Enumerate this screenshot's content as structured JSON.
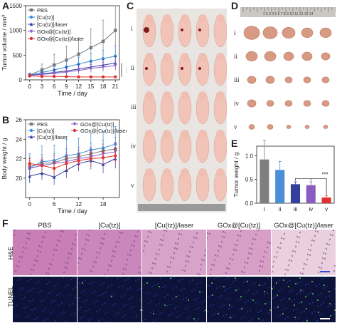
{
  "panels": {
    "A": "A",
    "B": "B",
    "C": "C",
    "D": "D",
    "E": "E",
    "F": "F"
  },
  "colors": {
    "pbs": "#7a7a7a",
    "cutz": "#3a8fd4",
    "cutz_laser": "#2f3e9e",
    "gox_cutz": "#8c5cc7",
    "gox_cutz_laser": "#e03030"
  },
  "chart_data": [
    {
      "id": "A",
      "type": "line",
      "xlabel": "Time / day",
      "ylabel": "Tumor volume / mm³",
      "x": [
        0,
        3,
        6,
        9,
        12,
        15,
        18,
        21
      ],
      "xlim": [
        -1,
        22
      ],
      "ylim": [
        0,
        1500
      ],
      "xticks": [
        "0",
        "3",
        "6",
        "9",
        "12",
        "15",
        "18",
        "21"
      ],
      "yticks": [
        "0",
        "500",
        "1000",
        "1500"
      ],
      "annotation": "***",
      "series": [
        {
          "name": "PBS",
          "color": "#7a7a7a",
          "marker": "square",
          "values": [
            100,
            200,
            300,
            400,
            520,
            650,
            780,
            1000
          ],
          "err": [
            40,
            120,
            220,
            280,
            330,
            380,
            430,
            560
          ]
        },
        {
          "name": "[Cu(tz)]",
          "color": "#3a8fd4",
          "marker": "circle",
          "values": [
            95,
            150,
            200,
            260,
            320,
            380,
            430,
            480
          ],
          "err": [
            30,
            80,
            100,
            120,
            140,
            150,
            170,
            200
          ]
        },
        {
          "name": "[Cu(tz)]/laser",
          "color": "#2f3e9e",
          "marker": "triangle",
          "values": [
            90,
            120,
            150,
            180,
            220,
            260,
            300,
            340
          ],
          "err": [
            20,
            40,
            60,
            80,
            90,
            100,
            110,
            130
          ]
        },
        {
          "name": "GOx@[Cu(tz)]",
          "color": "#8c5cc7",
          "marker": "triangle-down",
          "values": [
            90,
            110,
            130,
            160,
            190,
            230,
            260,
            290
          ],
          "err": [
            20,
            30,
            40,
            60,
            70,
            80,
            90,
            100
          ]
        },
        {
          "name": "GOx@[Cu(tz)]/laser",
          "color": "#e03030",
          "marker": "circle",
          "values": [
            80,
            70,
            70,
            65,
            60,
            60,
            60,
            60
          ],
          "err": [
            10,
            10,
            10,
            10,
            8,
            8,
            8,
            8
          ]
        }
      ]
    },
    {
      "id": "B",
      "type": "line",
      "xlabel": "Time / day",
      "ylabel": "Body weight / g",
      "x": [
        0,
        3,
        6,
        9,
        12,
        15,
        18,
        21
      ],
      "xlim": [
        -1,
        22
      ],
      "ylim": [
        18,
        26
      ],
      "xticks": [
        "0",
        "6",
        "12",
        "18"
      ],
      "yticks": [
        "20",
        "22",
        "24",
        "26"
      ],
      "series": [
        {
          "name": "PBS",
          "color": "#7a7a7a",
          "marker": "square",
          "values": [
            21.2,
            21.5,
            21.6,
            22.0,
            22.2,
            22.5,
            22.8,
            23.0
          ],
          "err": [
            0.8,
            0.9,
            0.9,
            1.0,
            1.0,
            1.1,
            1.1,
            1.2
          ]
        },
        {
          "name": "[Cu(tz)]",
          "color": "#3a8fd4",
          "marker": "circle",
          "values": [
            21.0,
            21.7,
            21.8,
            22.3,
            22.5,
            22.9,
            23.1,
            23.5
          ],
          "err": [
            1.5,
            1.6,
            1.6,
            1.7,
            1.6,
            1.7,
            1.7,
            1.8
          ]
        },
        {
          "name": "[Cu(tz)]/laser",
          "color": "#2f3e9e",
          "marker": "triangle",
          "values": [
            20.2,
            20.5,
            20.1,
            20.8,
            21.5,
            21.8,
            21.4,
            22.0
          ],
          "err": [
            0.7,
            0.7,
            0.8,
            0.8,
            0.8,
            0.9,
            0.9,
            1.0
          ]
        },
        {
          "name": "GOx@[Cu(tz)]",
          "color": "#8c5cc7",
          "marker": "triangle-down",
          "values": [
            21.0,
            21.3,
            21.5,
            21.7,
            22.0,
            22.2,
            22.5,
            22.7
          ],
          "err": [
            0.8,
            0.8,
            0.8,
            0.9,
            0.9,
            1.0,
            1.0,
            1.0
          ]
        },
        {
          "name": "GOx@[Cu(tz)]/laser",
          "color": "#e03030",
          "marker": "circle",
          "values": [
            21.5,
            21.3,
            21.0,
            21.5,
            21.8,
            22.0,
            22.1,
            22.3
          ],
          "err": [
            0.6,
            0.6,
            0.7,
            0.7,
            0.7,
            0.8,
            0.8,
            0.8
          ]
        }
      ]
    },
    {
      "id": "E",
      "type": "bar",
      "ylabel": "Tumor weight / g",
      "categories": [
        "i",
        "ii",
        "iii",
        "iv",
        "v"
      ],
      "values": [
        0.92,
        0.7,
        0.4,
        0.38,
        0.12
      ],
      "err": [
        0.4,
        0.18,
        0.05,
        0.07,
        0.04
      ],
      "colors": [
        "#7f7f7f",
        "#4a8ed3",
        "#35409c",
        "#8a5cc2",
        "#e03030"
      ],
      "ylim": [
        0,
        1.2
      ],
      "yticks": [
        "0.0",
        "0.5",
        "1.0"
      ],
      "annotation": "***"
    }
  ],
  "photos": {
    "C_rows": [
      "i",
      "ii",
      "iii",
      "iv",
      "v"
    ],
    "D_rows": [
      "i",
      "ii",
      "iii",
      "iv",
      "v"
    ],
    "D_ruler_text": "1 2 3 4 5 6 7 8 9 10 11 12 13 14"
  },
  "histology": {
    "columns": [
      "PBS",
      "[Cu(tz)]",
      "[Cu(tz)]/laser",
      "GOx@[Cu(tz)]",
      "GOx@[Cu(tz)]/laser"
    ],
    "rows": [
      "H&E",
      "TUNEL"
    ]
  }
}
